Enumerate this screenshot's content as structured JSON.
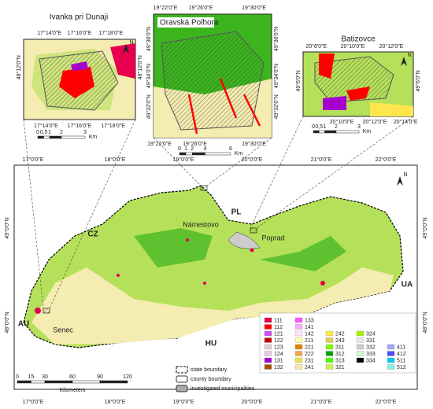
{
  "main_map": {
    "lon_labels_top": [
      "17°0'0\"E",
      "18°0'0\"E",
      "19°0'0\"E",
      "20°0'0\"E",
      "21°0'0\"E",
      "22°0'0\"E"
    ],
    "lon_labels_bottom": [
      "17°0'0\"E",
      "18°0'0\"E",
      "19°0'0\"E",
      "20°0'0\"E",
      "21°0'0\"E",
      "22°0'0\"E"
    ],
    "lat_labels_left": [
      "49°0'0\"N",
      "48°0'0\"N"
    ],
    "lat_labels_right": [
      "49°0'0\"N",
      "48°0'0\"N"
    ],
    "countries": [
      "CZ",
      "PL",
      "UA",
      "HU",
      "AU"
    ],
    "towns": [
      "Námestovo",
      "Poprad",
      "Senec"
    ],
    "north": "N",
    "scale": {
      "ticks": [
        "0",
        "15",
        "30",
        "60",
        "90",
        "120"
      ],
      "unit": "Kilometers"
    }
  },
  "legend": {
    "boundaries": [
      "state boundary",
      "county boundary",
      "investigated municipalities"
    ],
    "classes": [
      {
        "code": "111",
        "color": "#e6004d"
      },
      {
        "code": "112",
        "color": "#ff0000"
      },
      {
        "code": "121",
        "color": "#cc4df2"
      },
      {
        "code": "122",
        "color": "#cc0000"
      },
      {
        "code": "123",
        "color": "#e6cccc"
      },
      {
        "code": "124",
        "color": "#e6cce6"
      },
      {
        "code": "131",
        "color": "#a600cc"
      },
      {
        "code": "132",
        "color": "#a64d00"
      },
      {
        "code": "133",
        "color": "#ff4dff"
      },
      {
        "code": "141",
        "color": "#ffa6ff"
      },
      {
        "code": "142",
        "color": "#ffe6ff"
      },
      {
        "code": "211",
        "color": "#ffffa8"
      },
      {
        "code": "221",
        "color": "#e68000"
      },
      {
        "code": "222",
        "color": "#f2a64d"
      },
      {
        "code": "231",
        "color": "#e6e64d"
      },
      {
        "code": "241",
        "color": "#ffe6a6"
      },
      {
        "code": "242",
        "color": "#ffe64d"
      },
      {
        "code": "243",
        "color": "#e6cc4d"
      },
      {
        "code": "311",
        "color": "#80ff00"
      },
      {
        "code": "312",
        "color": "#00a600"
      },
      {
        "code": "313",
        "color": "#4dff00"
      },
      {
        "code": "321",
        "color": "#ccf24d"
      },
      {
        "code": "324",
        "color": "#a6f200"
      },
      {
        "code": "331",
        "color": "#e6e6e6"
      },
      {
        "code": "332",
        "color": "#cccccc"
      },
      {
        "code": "333",
        "color": "#ccffcc"
      },
      {
        "code": "334",
        "color": "#000000"
      },
      {
        "code": "411",
        "color": "#a6a6ff"
      },
      {
        "code": "412",
        "color": "#4d4dff"
      },
      {
        "code": "511",
        "color": "#00ccf2"
      },
      {
        "code": "512",
        "color": "#80f2e6"
      }
    ]
  },
  "insets": [
    {
      "title": "Ivanka pri Dunaji",
      "top_ticks": [
        "17°14'0\"E",
        "17°16'0\"E",
        "17°18'0\"E"
      ],
      "bottom_ticks": [
        "17°14'0\"E",
        "17°16'0\"E",
        "17°18'0\"E"
      ],
      "left_ticks": [
        "48°12'0\"N"
      ],
      "right_ticks": [
        "48°12'0\"N"
      ],
      "north": "N",
      "scale": {
        "ticks": [
          "0",
          "0,5",
          "1",
          "2",
          "3"
        ],
        "unit": "Km"
      }
    },
    {
      "title": "Oravská Polhora",
      "top_ticks": [
        "19°22'0\"E",
        "19°26'0\"E",
        "19°30'0\"E"
      ],
      "bottom_ticks": [
        "19°22'0\"E",
        "19°26'0\"E",
        "19°30'0\"E"
      ],
      "left_ticks": [
        "49°36'0\"N",
        "49°34'0\"N",
        "49°32'0\"N"
      ],
      "right_ticks": [
        "49°36'0\"N",
        "49°34'0\"N",
        "49°32'0\"N"
      ],
      "scale": {
        "ticks": [
          "0",
          "1",
          "2",
          "4",
          "6"
        ],
        "unit": "Km"
      }
    },
    {
      "title": "Batizovce",
      "top_ticks": [
        "20°8'0\"E",
        "20°10'0\"E",
        "20°12'0\"E"
      ],
      "bottom_ticks": [
        "20°10'0\"E",
        "20°12'0\"E",
        "20°14'0\"E"
      ],
      "left_ticks": [
        "49°6'0\"N"
      ],
      "right_ticks": [
        "49°6'0\"N"
      ],
      "north": "N",
      "scale": {
        "ticks": [
          "0",
          "0,5",
          "1",
          "2",
          "3"
        ],
        "unit": "Km"
      }
    }
  ]
}
